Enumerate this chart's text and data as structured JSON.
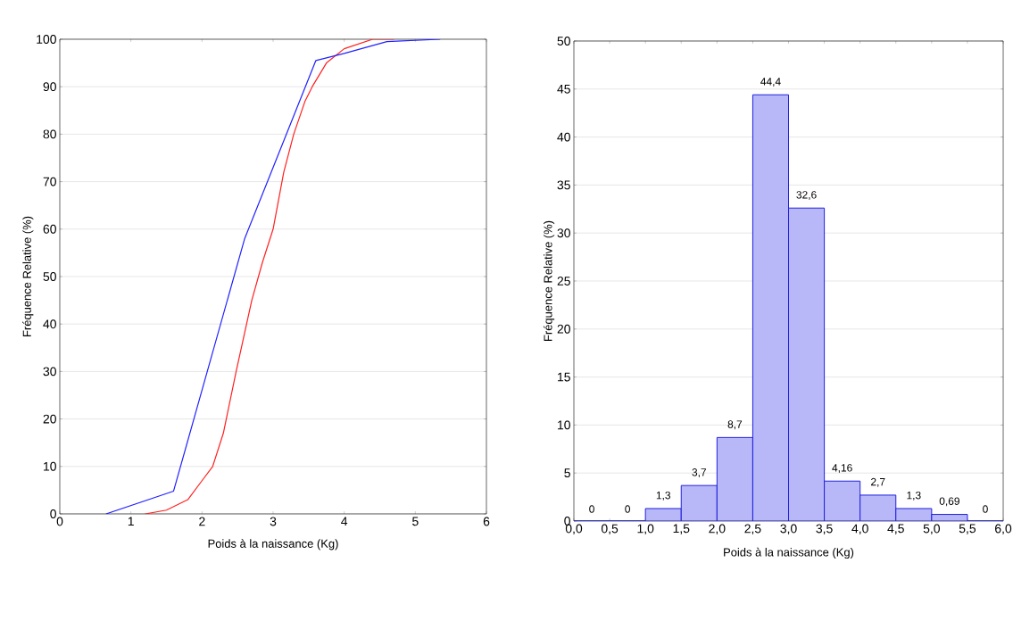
{
  "chart_data": [
    {
      "type": "line",
      "xlabel": "Poids à la naissance (Kg)",
      "ylabel": "Fréquence Relative (%)",
      "xlim": [
        0,
        6
      ],
      "ylim": [
        0,
        100
      ],
      "xticks": [
        0,
        1,
        2,
        3,
        4,
        5,
        6
      ],
      "yticks": [
        0,
        10,
        20,
        30,
        40,
        50,
        60,
        70,
        80,
        90,
        100
      ],
      "grid": "y",
      "series": [
        {
          "color": "#ff2020",
          "x": [
            1.2,
            1.5,
            1.8,
            2.0,
            2.15,
            2.3,
            2.48,
            2.7,
            2.85,
            3.0,
            3.15,
            3.29,
            3.45,
            3.55,
            3.75,
            4.0,
            4.4,
            4.7
          ],
          "values": [
            0,
            0.8,
            3,
            7,
            10,
            17,
            30,
            45,
            53,
            60,
            72,
            80,
            87,
            90,
            95,
            98,
            100,
            100
          ]
        },
        {
          "color": "#2020ff",
          "x": [
            0.65,
            1.6,
            2.6,
            3.6,
            4.0,
            4.6,
            5.35
          ],
          "values": [
            0,
            4.8,
            58,
            95.5,
            97,
            99.5,
            100
          ]
        }
      ]
    },
    {
      "type": "histogram",
      "xlabel": "Poids à la naissance (Kg)",
      "ylabel": "Fréquence Relative (%)",
      "xlim": [
        0,
        6
      ],
      "ylim": [
        0,
        50
      ],
      "color": "#b8b8f8",
      "xticks": [
        {
          "value": 0,
          "label": "0,0"
        },
        {
          "value": 0.5,
          "label": "0,5"
        },
        {
          "value": 1,
          "label": "1,0"
        },
        {
          "value": 1.5,
          "label": "1,5"
        },
        {
          "value": 2,
          "label": "2,0"
        },
        {
          "value": 2.5,
          "label": "2,5"
        },
        {
          "value": 3,
          "label": "3,0"
        },
        {
          "value": 3.5,
          "label": "3,5"
        },
        {
          "value": 4,
          "label": "4,0"
        },
        {
          "value": 4.5,
          "label": "4,5"
        },
        {
          "value": 5,
          "label": "5,0"
        },
        {
          "value": 5.5,
          "label": "5,5"
        },
        {
          "value": 6,
          "label": "6,0"
        }
      ],
      "yticks": [
        0,
        5,
        10,
        15,
        20,
        25,
        30,
        35,
        40,
        45,
        50
      ],
      "grid": "y",
      "bins": [
        0,
        0.5,
        1,
        1.5,
        2,
        2.5,
        3,
        3.5,
        4,
        4.5,
        5,
        5.5,
        6
      ],
      "values": [
        0,
        0,
        1.3,
        3.7,
        8.7,
        44.4,
        32.6,
        4.16,
        2.7,
        1.3,
        0.69,
        0
      ],
      "value_labels": [
        "0",
        "0",
        "1,3",
        "3,7",
        "8,7",
        "44,4",
        "32,6",
        "4,16",
        "2,7",
        "1,3",
        "0,69",
        "0"
      ]
    }
  ]
}
